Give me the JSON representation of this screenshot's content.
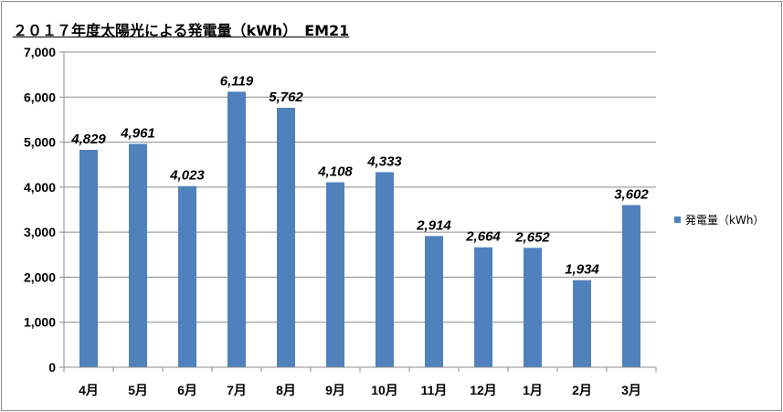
{
  "chart_data": {
    "type": "bar",
    "title": "２０１７年度太陽光による発電量（kWh）　EM21",
    "categories": [
      "4月",
      "5月",
      "6月",
      "7月",
      "8月",
      "9月",
      "10月",
      "11月",
      "12月",
      "1月",
      "2月",
      "3月"
    ],
    "series": [
      {
        "name": "発電量（kWh）",
        "values": [
          4829,
          4961,
          4023,
          6119,
          5762,
          4108,
          4333,
          2914,
          2664,
          2652,
          1934,
          3602
        ],
        "labels": [
          "4,829",
          "4,961",
          "4,023",
          "6,119",
          "5,762",
          "4,108",
          "4,333",
          "2,914",
          "2,664",
          "2,652",
          "1,934",
          "3,602"
        ]
      }
    ],
    "yticks": [
      "0",
      "1,000",
      "2,000",
      "3,000",
      "4,000",
      "5,000",
      "6,000",
      "7,000"
    ],
    "ylim": [
      0,
      7000
    ],
    "grid": true,
    "legend_position": "right",
    "colors": {
      "bar": "#4f81bd",
      "grid": "#8c8c8c",
      "axis": "#8c8c8c"
    }
  }
}
